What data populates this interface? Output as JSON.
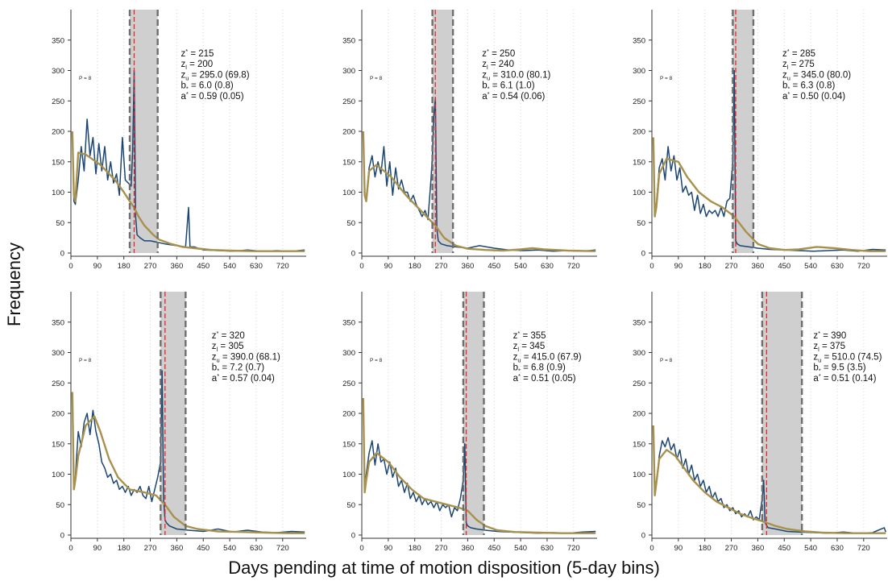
{
  "figure": {
    "ylabel": "Frequency",
    "xlabel": "Days pending at time of motion disposition (5-day bins)"
  },
  "colors": {
    "observed": "#1b4673",
    "counterfactual": "#a8914c",
    "threshold": "#e8262a",
    "band_fill": "#cfcfcf",
    "band_edge": "#6e6e6e",
    "grid": "#d4d4d4"
  },
  "chart_data": [
    {
      "type": "line",
      "p_label": "P = 8",
      "x_ticks": [
        0,
        90,
        180,
        270,
        360,
        450,
        540,
        630,
        720
      ],
      "y_ticks": [
        0,
        50,
        100,
        150,
        200,
        250,
        300,
        350
      ],
      "xlim": [
        0,
        800
      ],
      "ylim": [
        0,
        400
      ],
      "grid": "vertical dotted",
      "threshold": 215,
      "band": [
        200,
        295
      ],
      "stats": {
        "z_star": "= 215",
        "z_l": "= 200",
        "z_u": "= 295.0 (69.8)",
        "b": "= 6.0 (0.8)",
        "a": "= 0.59 (0.05)"
      },
      "series": [
        {
          "role": "observed",
          "x": [
            5,
            10,
            15,
            25,
            35,
            45,
            55,
            65,
            75,
            85,
            95,
            105,
            115,
            125,
            135,
            145,
            155,
            165,
            175,
            185,
            195,
            205,
            210,
            215,
            220,
            225,
            235,
            250,
            270,
            290,
            320,
            360,
            390,
            400,
            405,
            420,
            450,
            500,
            550,
            600,
            650,
            700,
            750,
            795
          ],
          "y": [
            195,
            85,
            80,
            120,
            175,
            135,
            220,
            160,
            190,
            130,
            180,
            135,
            175,
            120,
            150,
            115,
            130,
            95,
            190,
            120,
            115,
            110,
            170,
            300,
            60,
            30,
            25,
            20,
            20,
            18,
            15,
            12,
            10,
            75,
            10,
            10,
            5,
            4,
            3,
            5,
            3,
            4,
            3,
            5
          ]
        },
        {
          "role": "counterfactual",
          "x": [
            5,
            10,
            15,
            25,
            50,
            100,
            150,
            180,
            200,
            215,
            230,
            250,
            280,
            300,
            340,
            380,
            420,
            480,
            540,
            620,
            700,
            795
          ],
          "y": [
            200,
            95,
            85,
            165,
            162,
            145,
            120,
            100,
            85,
            75,
            60,
            45,
            30,
            22,
            15,
            10,
            8,
            5,
            4,
            3,
            3,
            3
          ]
        }
      ]
    },
    {
      "type": "line",
      "p_label": "P = 8",
      "x_ticks": [
        0,
        90,
        180,
        270,
        360,
        450,
        540,
        630,
        720
      ],
      "y_ticks": [
        0,
        50,
        100,
        150,
        200,
        250,
        300,
        350
      ],
      "xlim": [
        0,
        800
      ],
      "ylim": [
        0,
        400
      ],
      "grid": "vertical dotted",
      "threshold": 250,
      "band": [
        240,
        310
      ],
      "stats": {
        "z_star": "= 250",
        "z_l": "= 240",
        "z_u": "= 310.0 (80.1)",
        "b": "= 6.1 (1.0)",
        "a": "= 0.54 (0.06)"
      },
      "series": [
        {
          "role": "observed",
          "x": [
            5,
            10,
            15,
            25,
            35,
            45,
            55,
            65,
            75,
            85,
            95,
            105,
            115,
            125,
            135,
            145,
            155,
            165,
            175,
            185,
            195,
            205,
            215,
            225,
            235,
            240,
            245,
            250,
            255,
            260,
            270,
            290,
            320,
            360,
            400,
            450,
            500,
            550,
            600,
            650,
            700,
            750,
            795
          ],
          "y": [
            200,
            95,
            90,
            140,
            160,
            125,
            150,
            130,
            175,
            110,
            150,
            95,
            140,
            105,
            120,
            100,
            100,
            85,
            95,
            80,
            70,
            60,
            70,
            55,
            120,
            160,
            225,
            255,
            40,
            20,
            15,
            12,
            10,
            8,
            12,
            8,
            5,
            4,
            5,
            3,
            4,
            3,
            5
          ]
        },
        {
          "role": "counterfactual",
          "x": [
            5,
            10,
            15,
            25,
            50,
            100,
            150,
            200,
            230,
            250,
            280,
            320,
            360,
            420,
            480,
            540,
            580,
            620,
            700,
            795
          ],
          "y": [
            200,
            95,
            85,
            135,
            145,
            125,
            95,
            70,
            55,
            45,
            25,
            12,
            7,
            5,
            4,
            6,
            8,
            6,
            4,
            3
          ]
        }
      ]
    },
    {
      "type": "line",
      "p_label": "P = 8",
      "x_ticks": [
        0,
        90,
        180,
        270,
        360,
        450,
        540,
        630,
        720
      ],
      "y_ticks": [
        0,
        50,
        100,
        150,
        200,
        250,
        300,
        350
      ],
      "xlim": [
        0,
        800
      ],
      "ylim": [
        0,
        400
      ],
      "grid": "vertical dotted",
      "threshold": 285,
      "band": [
        275,
        345
      ],
      "stats": {
        "z_star": "= 285",
        "z_l": "= 275",
        "z_u": "= 345.0 (80.0)",
        "b": "= 6.3 (0.8)",
        "a": "= 0.50 (0.04)"
      },
      "series": [
        {
          "role": "observed",
          "x": [
            5,
            10,
            15,
            25,
            35,
            45,
            55,
            65,
            75,
            85,
            95,
            105,
            115,
            125,
            135,
            145,
            155,
            165,
            175,
            185,
            195,
            205,
            215,
            225,
            235,
            245,
            255,
            265,
            275,
            280,
            285,
            290,
            300,
            330,
            360,
            400,
            450,
            500,
            550,
            600,
            650,
            700,
            750,
            795
          ],
          "y": [
            190,
            60,
            80,
            140,
            155,
            120,
            175,
            135,
            160,
            120,
            140,
            100,
            110,
            95,
            100,
            70,
            95,
            65,
            80,
            60,
            70,
            65,
            70,
            60,
            75,
            60,
            85,
            90,
            150,
            300,
            20,
            15,
            12,
            10,
            8,
            6,
            5,
            4,
            3,
            4,
            5,
            3,
            6,
            5
          ]
        },
        {
          "role": "counterfactual",
          "x": [
            5,
            10,
            15,
            25,
            50,
            90,
            120,
            160,
            200,
            240,
            280,
            320,
            360,
            400,
            450,
            500,
            560,
            620,
            680,
            740,
            795
          ],
          "y": [
            190,
            60,
            75,
            130,
            155,
            150,
            125,
            100,
            85,
            75,
            60,
            35,
            15,
            8,
            5,
            6,
            10,
            8,
            5,
            3,
            3
          ]
        }
      ]
    },
    {
      "type": "line",
      "p_label": "P = 8",
      "x_ticks": [
        0,
        90,
        180,
        270,
        360,
        450,
        540,
        630,
        720
      ],
      "y_ticks": [
        0,
        50,
        100,
        150,
        200,
        250,
        300,
        350
      ],
      "xlim": [
        0,
        800
      ],
      "ylim": [
        0,
        400
      ],
      "grid": "vertical dotted",
      "threshold": 320,
      "band": [
        305,
        390
      ],
      "stats": {
        "z_star": "= 320",
        "z_l": "= 305",
        "z_u": "= 390.0 (68.1)",
        "b": "= 7.2 (0.7)",
        "a": "= 0.57 (0.04)"
      },
      "series": [
        {
          "role": "observed",
          "x": [
            5,
            10,
            15,
            25,
            35,
            45,
            55,
            65,
            75,
            85,
            95,
            105,
            115,
            125,
            135,
            145,
            155,
            165,
            175,
            185,
            195,
            205,
            215,
            225,
            235,
            245,
            255,
            265,
            275,
            285,
            295,
            305,
            310,
            315,
            320,
            325,
            335,
            360,
            400,
            450,
            500,
            550,
            600,
            650,
            700,
            750,
            795
          ],
          "y": [
            235,
            75,
            95,
            170,
            145,
            185,
            200,
            165,
            205,
            170,
            150,
            120,
            110,
            95,
            100,
            85,
            90,
            75,
            80,
            70,
            80,
            65,
            75,
            70,
            80,
            65,
            60,
            80,
            55,
            75,
            95,
            120,
            270,
            60,
            25,
            20,
            15,
            10,
            8,
            6,
            10,
            5,
            8,
            5,
            4,
            6,
            5
          ]
        },
        {
          "role": "counterfactual",
          "x": [
            5,
            10,
            15,
            25,
            50,
            80,
            100,
            130,
            160,
            200,
            250,
            290,
            320,
            350,
            390,
            430,
            500,
            580,
            660,
            740,
            795
          ],
          "y": [
            235,
            75,
            90,
            130,
            180,
            195,
            170,
            125,
            95,
            75,
            70,
            65,
            50,
            30,
            15,
            10,
            6,
            5,
            4,
            3,
            3
          ]
        }
      ]
    },
    {
      "type": "line",
      "p_label": "P = 8",
      "x_ticks": [
        0,
        90,
        180,
        270,
        360,
        450,
        540,
        630,
        720
      ],
      "y_ticks": [
        0,
        50,
        100,
        150,
        200,
        250,
        300,
        350
      ],
      "xlim": [
        0,
        800
      ],
      "ylim": [
        0,
        400
      ],
      "grid": "vertical dotted",
      "threshold": 355,
      "band": [
        345,
        415
      ],
      "stats": {
        "z_star": "= 355",
        "z_l": "= 345",
        "z_u": "= 415.0 (67.9)",
        "b": "= 6.8 (0.9)",
        "a": "= 0.51 (0.05)"
      },
      "series": [
        {
          "role": "observed",
          "x": [
            5,
            10,
            15,
            25,
            35,
            45,
            55,
            65,
            75,
            85,
            95,
            105,
            115,
            125,
            135,
            145,
            155,
            165,
            175,
            185,
            195,
            205,
            215,
            225,
            235,
            245,
            255,
            265,
            275,
            285,
            295,
            305,
            315,
            325,
            335,
            345,
            350,
            355,
            360,
            370,
            390,
            420,
            460,
            500,
            550,
            600,
            650,
            700,
            750,
            795
          ],
          "y": [
            225,
            70,
            100,
            135,
            155,
            115,
            150,
            120,
            125,
            100,
            120,
            95,
            110,
            80,
            90,
            70,
            85,
            60,
            70,
            55,
            65,
            50,
            60,
            50,
            55,
            45,
            55,
            40,
            50,
            45,
            50,
            30,
            45,
            40,
            60,
            90,
            150,
            20,
            15,
            12,
            10,
            8,
            6,
            5,
            4,
            3,
            4,
            3,
            5,
            6
          ]
        },
        {
          "role": "counterfactual",
          "x": [
            5,
            10,
            15,
            25,
            50,
            90,
            130,
            170,
            210,
            250,
            290,
            330,
            360,
            390,
            420,
            460,
            520,
            600,
            680,
            740,
            795
          ],
          "y": [
            225,
            70,
            90,
            120,
            135,
            120,
            95,
            75,
            60,
            55,
            50,
            45,
            40,
            25,
            15,
            8,
            5,
            4,
            3,
            3,
            3
          ]
        }
      ]
    },
    {
      "type": "line",
      "p_label": "P = 8",
      "x_ticks": [
        0,
        90,
        180,
        270,
        360,
        450,
        540,
        630,
        720
      ],
      "y_ticks": [
        0,
        50,
        100,
        150,
        200,
        250,
        300,
        350
      ],
      "xlim": [
        0,
        800
      ],
      "ylim": [
        0,
        400
      ],
      "grid": "vertical dotted",
      "threshold": 390,
      "band": [
        375,
        510
      ],
      "stats": {
        "z_star": "= 390",
        "z_l": "= 375",
        "z_u": "= 510.0 (74.5)",
        "b": "= 9.5 (3.5)",
        "a": "= 0.51 (0.14)"
      },
      "series": [
        {
          "role": "observed",
          "x": [
            5,
            10,
            15,
            25,
            35,
            45,
            55,
            65,
            75,
            85,
            95,
            105,
            115,
            125,
            135,
            145,
            155,
            165,
            175,
            185,
            195,
            205,
            215,
            225,
            235,
            245,
            255,
            265,
            275,
            285,
            295,
            305,
            315,
            325,
            335,
            345,
            355,
            365,
            375,
            380,
            385,
            395,
            420,
            460,
            500,
            550,
            600,
            650,
            700,
            750,
            790,
            795
          ],
          "y": [
            180,
            65,
            85,
            130,
            155,
            145,
            160,
            140,
            150,
            125,
            140,
            110,
            125,
            100,
            115,
            90,
            100,
            80,
            90,
            70,
            80,
            60,
            70,
            55,
            60,
            45,
            50,
            40,
            45,
            35,
            40,
            30,
            35,
            30,
            40,
            25,
            30,
            25,
            60,
            90,
            20,
            12,
            10,
            6,
            5,
            4,
            3,
            5,
            3,
            4,
            12,
            5
          ]
        },
        {
          "role": "counterfactual",
          "x": [
            5,
            10,
            15,
            25,
            50,
            80,
            110,
            140,
            180,
            220,
            260,
            300,
            340,
            380,
            420,
            460,
            520,
            580,
            660,
            740,
            795
          ],
          "y": [
            180,
            65,
            85,
            125,
            140,
            130,
            110,
            90,
            70,
            55,
            45,
            35,
            28,
            22,
            15,
            10,
            6,
            4,
            3,
            3,
            3
          ]
        }
      ]
    }
  ]
}
